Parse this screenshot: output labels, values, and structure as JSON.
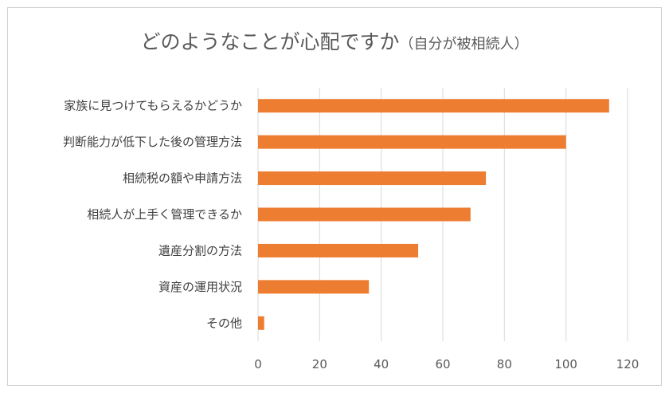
{
  "chart_data": {
    "type": "bar",
    "orientation": "horizontal",
    "title": "どのようなことが心配ですか",
    "subtitle": "（自分が被相続人）",
    "categories": [
      "家族に見つけてもらえるかどうか",
      "判断能力が低下した後の管理方法",
      "相続税の額や申請方法",
      "相続人が上手く管理できるか",
      "遺産分割の方法",
      "資産の運用状況",
      "その他"
    ],
    "values": [
      114,
      100,
      74,
      69,
      52,
      36,
      2
    ],
    "xlim": [
      0,
      120
    ],
    "xticks": [
      "0",
      "20",
      "40",
      "60",
      "80",
      "100",
      "120"
    ],
    "xlabel": "",
    "ylabel": "",
    "grid": "vertical",
    "bar_color": "#ED7D31",
    "grid_color": "#d9d9d9"
  }
}
